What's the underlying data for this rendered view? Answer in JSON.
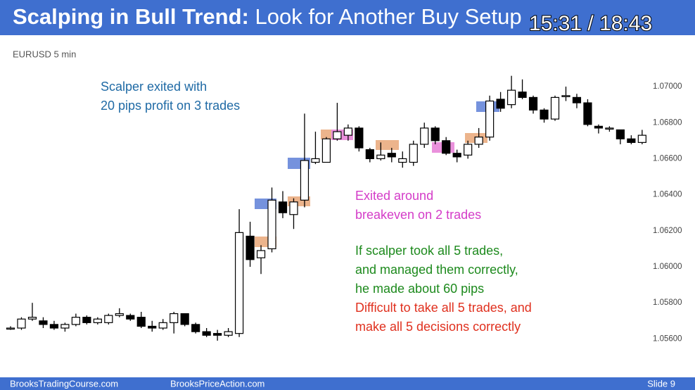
{
  "header": {
    "title_bold": "Scalping in Bull Trend:",
    "title_rest": "Look for Another Buy Setup",
    "timestamp": "15:31 / 18:43"
  },
  "footer": {
    "left": "BrooksTradingCourse.com",
    "center": "BrooksPriceAction.com",
    "right": "Slide 9"
  },
  "chart_data": {
    "type": "candlestick",
    "subtitle": "EURUSD 5 min",
    "open": [
      1.0566,
      1.0566,
      1.0571,
      1.057,
      1.0568,
      1.0566,
      1.0568,
      1.0572,
      1.0569,
      1.0569,
      1.0573,
      1.0573,
      1.0572,
      1.0567,
      1.0566,
      1.0569,
      1.0574,
      1.0568,
      1.0564,
      1.0563,
      1.0562,
      1.0563,
      1.0617,
      1.0605,
      1.061,
      1.0636,
      1.0629,
      1.0637,
      1.0658,
      1.0658,
      1.0671,
      1.0673,
      1.0677,
      1.0665,
      1.066,
      1.0663,
      1.0658,
      1.0658,
      1.0668,
      1.0677,
      1.067,
      1.0663,
      1.0662,
      1.0668,
      1.0672,
      1.0693,
      1.069,
      1.0697,
      1.0694,
      1.0687,
      1.0682,
      1.0695,
      1.0694,
      1.0691,
      1.0678,
      1.0677,
      1.0676,
      1.0671,
      1.0669
    ],
    "high": [
      1.0567,
      1.0572,
      1.058,
      1.0572,
      1.057,
      1.0569,
      1.0574,
      1.0573,
      1.0572,
      1.0574,
      1.0577,
      1.0574,
      1.0575,
      1.057,
      1.0571,
      1.0575,
      1.0574,
      1.0569,
      1.0566,
      1.0565,
      1.0566,
      1.0632,
      1.0625,
      1.0612,
      1.0644,
      1.0642,
      1.0638,
      1.0685,
      1.0675,
      1.0672,
      1.0691,
      1.0679,
      1.0678,
      1.0666,
      1.0669,
      1.0666,
      1.0664,
      1.067,
      1.068,
      1.0678,
      1.0672,
      1.0665,
      1.067,
      1.0677,
      1.0695,
      1.0697,
      1.0706,
      1.0704,
      1.0695,
      1.0688,
      1.0695,
      1.07,
      1.0696,
      1.0693,
      1.0679,
      1.0678,
      1.0676,
      1.0673,
      1.0676
    ],
    "low": [
      1.0565,
      1.0565,
      1.057,
      1.0566,
      1.0565,
      1.0564,
      1.0567,
      1.0568,
      1.0568,
      1.0568,
      1.0572,
      1.057,
      1.0566,
      1.0564,
      1.0565,
      1.0563,
      1.0567,
      1.0563,
      1.0561,
      1.0559,
      1.0561,
      1.0561,
      1.06,
      1.0596,
      1.0608,
      1.0627,
      1.0621,
      1.0633,
      1.0657,
      1.0658,
      1.067,
      1.067,
      1.0664,
      1.0658,
      1.0659,
      1.0658,
      1.0655,
      1.0656,
      1.0666,
      1.0668,
      1.0662,
      1.0658,
      1.066,
      1.0666,
      1.067,
      1.0686,
      1.0688,
      1.0693,
      1.0685,
      1.068,
      1.0681,
      1.0692,
      1.0688,
      1.0678,
      1.0674,
      1.0675,
      1.0668,
      1.0668,
      1.0668
    ],
    "close": [
      1.0566,
      1.0571,
      1.0572,
      1.0568,
      1.0566,
      1.0568,
      1.0572,
      1.0569,
      1.0571,
      1.0573,
      1.0574,
      1.0571,
      1.0567,
      1.0566,
      1.0569,
      1.0574,
      1.0568,
      1.0564,
      1.0562,
      1.0562,
      1.0564,
      1.0619,
      1.0604,
      1.0609,
      1.0637,
      1.063,
      1.0636,
      1.0659,
      1.066,
      1.0671,
      1.0675,
      1.0677,
      1.0666,
      1.066,
      1.0662,
      1.0661,
      1.066,
      1.0668,
      1.0677,
      1.067,
      1.0663,
      1.0661,
      1.0668,
      1.0672,
      1.0692,
      1.0688,
      1.0698,
      1.0694,
      1.0687,
      1.0682,
      1.0694,
      1.0695,
      1.0691,
      1.0679,
      1.0677,
      1.0677,
      1.0671,
      1.0669,
      1.0673
    ],
    "ylim": [
      1.0541,
      1.0709
    ],
    "yticks": [
      {
        "value": 1.056,
        "label": "1.05600"
      },
      {
        "value": 1.058,
        "label": "1.05800"
      },
      {
        "value": 1.06,
        "label": "1.06000"
      },
      {
        "value": 1.062,
        "label": "1.06200"
      },
      {
        "value": 1.064,
        "label": "1.06400"
      },
      {
        "value": 1.066,
        "label": "1.06600"
      },
      {
        "value": 1.068,
        "label": "1.06800"
      },
      {
        "value": 1.07,
        "label": "1.07000"
      }
    ],
    "up_color": "#ffffff",
    "down_color": "#000000",
    "annotations": [
      {
        "lines": [
          "Scalper exited with",
          "20 pips profit on 3 trades"
        ],
        "color": "#1f6aa5"
      },
      {
        "lines": [
          "Exited around",
          "breakeven on 2 trades"
        ],
        "color": "#d43cc8"
      },
      {
        "lines": [
          "If scalper took all 5 trades,",
          "and managed them correctly,",
          "he made about 60 pips"
        ],
        "color": "#1d8a1d"
      },
      {
        "lines": [
          "Difficult to take all 5 trades, and",
          "make all 5 decisions correctly"
        ],
        "color": "#e0301e"
      }
    ]
  }
}
